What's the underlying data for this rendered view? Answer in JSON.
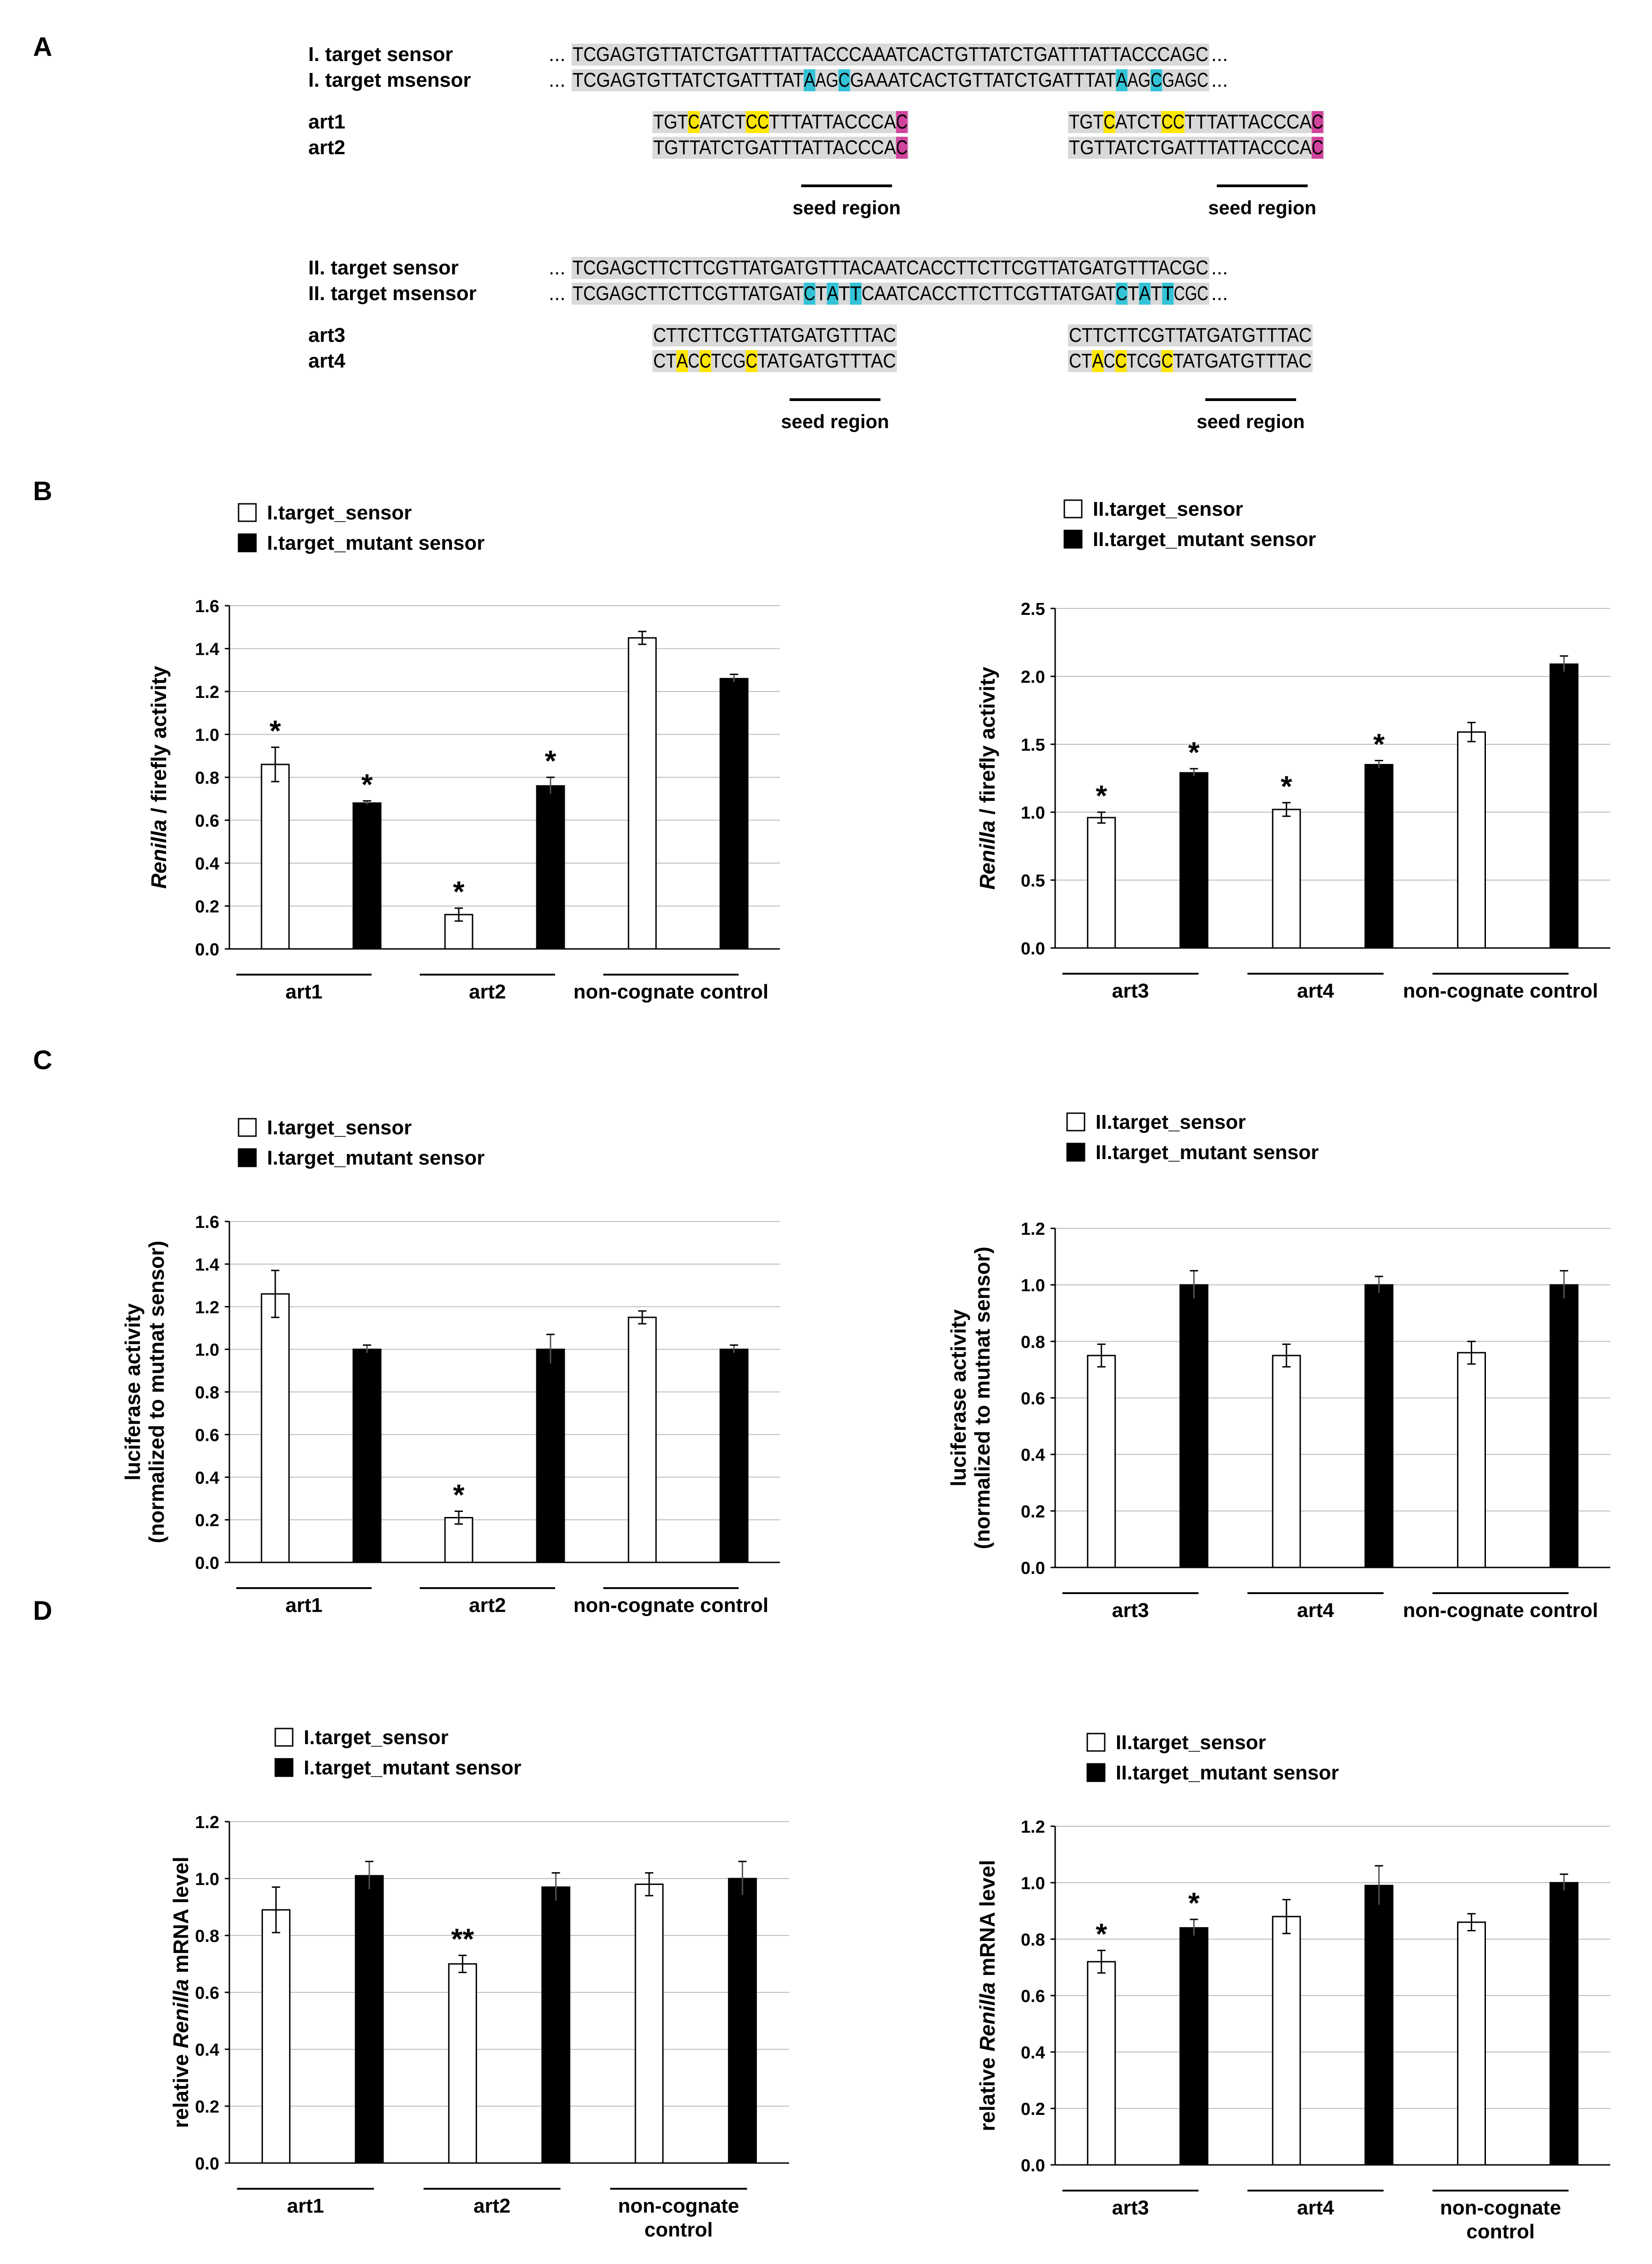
{
  "figure": {
    "panel_labels": [
      "A",
      "B",
      "C",
      "D"
    ],
    "colors": {
      "seq_bg": "#d9d9d9",
      "mut_cyan": "#33c3d7",
      "mut_yellow": "#ffe600",
      "mut_magenta": "#d0449d",
      "bar_filled": "#000000",
      "bar_open": "#ffffff"
    }
  },
  "panel_a": {
    "block1": {
      "rows": [
        {
          "label": "I. target sensor",
          "prefix": "...",
          "suffix": "...",
          "segments": [
            {
              "t": "TCGAGTGTTATCTGATTTATTACCCAAATCACTGTTATCTGATTTATTACCCAGC",
              "h": ""
            }
          ]
        },
        {
          "label": "I. target msensor",
          "prefix": "...",
          "suffix": "...",
          "segments": [
            {
              "t": "TCGAGTGTTATCTGATTTAT",
              "h": ""
            },
            {
              "t": "A",
              "h": "cyan"
            },
            {
              "t": "AG",
              "h": ""
            },
            {
              "t": "C",
              "h": "cyan"
            },
            {
              "t": "GAAATCACTGTTATCTGATTTAT",
              "h": ""
            },
            {
              "t": "A",
              "h": "cyan"
            },
            {
              "t": "AG",
              "h": ""
            },
            {
              "t": "C",
              "h": "cyan"
            },
            {
              "t": "GAGC",
              "h": ""
            }
          ]
        }
      ],
      "arts": [
        {
          "label": "art1",
          "left": [
            {
              "t": "TGT",
              "h": ""
            },
            {
              "t": "C",
              "h": "yellow"
            },
            {
              "t": "ATCT",
              "h": ""
            },
            {
              "t": "CC",
              "h": "yellow"
            },
            {
              "t": "TTTATTACCCA",
              "h": ""
            },
            {
              "t": "C",
              "h": "magenta"
            }
          ],
          "right": [
            {
              "t": "TGT",
              "h": ""
            },
            {
              "t": "C",
              "h": "yellow"
            },
            {
              "t": "ATCT",
              "h": ""
            },
            {
              "t": "CC",
              "h": "yellow"
            },
            {
              "t": "TTTATTACCCA",
              "h": ""
            },
            {
              "t": "C",
              "h": "magenta"
            }
          ]
        },
        {
          "label": "art2",
          "left": [
            {
              "t": "TGTTATCTGATTTATTACCCA",
              "h": ""
            },
            {
              "t": "C",
              "h": "magenta"
            }
          ],
          "right": [
            {
              "t": "TGTTATCTGATTTATTACCCA",
              "h": ""
            },
            {
              "t": "C",
              "h": "magenta"
            }
          ]
        }
      ],
      "seed_label": "seed region"
    },
    "block2": {
      "rows": [
        {
          "label": "II. target sensor",
          "prefix": "...",
          "suffix": "...",
          "segments": [
            {
              "t": "TCGAGCTTCTTCGTTATGATGTTTACAATCACCTTCTTCGTTATGATGTTTACGC",
              "h": ""
            }
          ]
        },
        {
          "label": "II. target msensor",
          "prefix": "...",
          "suffix": "...",
          "segments": [
            {
              "t": "TCGAGCTTCTTCGTTATGAT",
              "h": ""
            },
            {
              "t": "C",
              "h": "cyan"
            },
            {
              "t": "T",
              "h": ""
            },
            {
              "t": "A",
              "h": "cyan"
            },
            {
              "t": "T",
              "h": ""
            },
            {
              "t": "T",
              "h": "cyan"
            },
            {
              "t": "CAATCACCTTCTTCGTTATGAT",
              "h": ""
            },
            {
              "t": "C",
              "h": "cyan"
            },
            {
              "t": "T",
              "h": ""
            },
            {
              "t": "A",
              "h": "cyan"
            },
            {
              "t": "T",
              "h": ""
            },
            {
              "t": "T",
              "h": "cyan"
            },
            {
              "t": "CGC",
              "h": ""
            }
          ]
        }
      ],
      "arts": [
        {
          "label": "art3",
          "left": [
            {
              "t": "CTTCTTCGTTATGATGTTTAC",
              "h": ""
            }
          ],
          "right": [
            {
              "t": "CTTCTTCGTTATGATGTTTAC",
              "h": ""
            }
          ]
        },
        {
          "label": "art4",
          "left": [
            {
              "t": "CT",
              "h": ""
            },
            {
              "t": "A",
              "h": "yellow"
            },
            {
              "t": "C",
              "h": ""
            },
            {
              "t": "C",
              "h": "yellow"
            },
            {
              "t": "TCG",
              "h": ""
            },
            {
              "t": "C",
              "h": "yellow"
            },
            {
              "t": "TATGATGTTTAC",
              "h": ""
            }
          ],
          "right": [
            {
              "t": "CT",
              "h": ""
            },
            {
              "t": "A",
              "h": "yellow"
            },
            {
              "t": "C",
              "h": ""
            },
            {
              "t": "C",
              "h": "yellow"
            },
            {
              "t": "TCG",
              "h": ""
            },
            {
              "t": "C",
              "h": "yellow"
            },
            {
              "t": "TATGATGTTTAC",
              "h": ""
            }
          ]
        }
      ],
      "seed_label": "seed region"
    }
  },
  "chart_data": [
    {
      "id": "B-left",
      "panel": "B",
      "type": "bar",
      "ylabel_parts": [
        "Renilla",
        " / firefly activity"
      ],
      "ylim": [
        0,
        1.6
      ],
      "yticks": [
        0,
        0.2,
        0.4,
        0.6,
        0.8,
        1.0,
        1.2,
        1.4,
        1.6
      ],
      "decimals": 1,
      "legend": [
        "I.target_sensor",
        "I.target_mutant sensor"
      ],
      "groups": [
        {
          "label": [
            "art1"
          ]
        },
        {
          "label": [
            "art2"
          ]
        },
        {
          "label": [
            "non-cognate control"
          ]
        }
      ],
      "series": [
        {
          "name": "I.target_sensor",
          "fill": "open",
          "values": [
            0.86,
            0.16,
            1.45
          ],
          "errors": [
            0.08,
            0.03,
            0.03
          ],
          "marks": [
            "*",
            "*",
            ""
          ]
        },
        {
          "name": "I.target_mutant sensor",
          "fill": "filled",
          "values": [
            0.68,
            0.76,
            1.26
          ],
          "errors": [
            0.01,
            0.04,
            0.02
          ],
          "marks": [
            "*",
            "*",
            ""
          ]
        }
      ]
    },
    {
      "id": "B-right",
      "panel": "B",
      "type": "bar",
      "ylabel_parts": [
        "Renilla",
        " / firefly activity"
      ],
      "ylim": [
        0,
        2.5
      ],
      "yticks": [
        0,
        0.5,
        1.0,
        1.5,
        2.0,
        2.5
      ],
      "decimals": 1,
      "legend": [
        "II.target_sensor",
        "II.target_mutant sensor"
      ],
      "groups": [
        {
          "label": [
            "art3"
          ]
        },
        {
          "label": [
            "art4"
          ]
        },
        {
          "label": [
            "non-cognate control"
          ]
        }
      ],
      "series": [
        {
          "name": "II.target_sensor",
          "fill": "open",
          "values": [
            0.96,
            1.02,
            1.59
          ],
          "errors": [
            0.04,
            0.05,
            0.07
          ],
          "marks": [
            "*",
            "*",
            ""
          ]
        },
        {
          "name": "II.target_mutant sensor",
          "fill": "filled",
          "values": [
            1.29,
            1.35,
            2.09
          ],
          "errors": [
            0.03,
            0.03,
            0.06
          ],
          "marks": [
            "*",
            "*",
            ""
          ]
        }
      ]
    },
    {
      "id": "C-left",
      "panel": "C",
      "type": "bar",
      "ylabel_lines": [
        "luciferase activity",
        "(normalized to mutnat sensor)"
      ],
      "ylim": [
        0,
        1.6
      ],
      "yticks": [
        0,
        0.2,
        0.4,
        0.6,
        0.8,
        1.0,
        1.2,
        1.4,
        1.6
      ],
      "decimals": 1,
      "legend": [
        "I.target_sensor",
        "I.target_mutant sensor"
      ],
      "groups": [
        {
          "label": [
            "art1"
          ]
        },
        {
          "label": [
            "art2"
          ]
        },
        {
          "label": [
            "non-cognate control"
          ]
        }
      ],
      "series": [
        {
          "name": "I.target_sensor",
          "fill": "open",
          "values": [
            1.26,
            0.21,
            1.15
          ],
          "errors": [
            0.11,
            0.03,
            0.03
          ],
          "marks": [
            "",
            "*",
            ""
          ]
        },
        {
          "name": "I.target_mutant sensor",
          "fill": "filled",
          "values": [
            1.0,
            1.0,
            1.0
          ],
          "errors": [
            0.02,
            0.07,
            0.02
          ],
          "marks": [
            "",
            "",
            ""
          ]
        }
      ]
    },
    {
      "id": "C-right",
      "panel": "C",
      "type": "bar",
      "ylabel_lines": [
        "luciferase activity",
        "(normalized to mutnat sensor)"
      ],
      "ylim": [
        0,
        1.2
      ],
      "yticks": [
        0,
        0.2,
        0.4,
        0.6,
        0.8,
        1.0,
        1.2
      ],
      "decimals": 1,
      "legend": [
        "II.target_sensor",
        "II.target_mutant sensor"
      ],
      "groups": [
        {
          "label": [
            "art3"
          ]
        },
        {
          "label": [
            "art4"
          ]
        },
        {
          "label": [
            "non-cognate control"
          ]
        }
      ],
      "series": [
        {
          "name": "II.target_sensor",
          "fill": "open",
          "values": [
            0.75,
            0.75,
            0.76
          ],
          "errors": [
            0.04,
            0.04,
            0.04
          ],
          "marks": [
            "",
            "",
            ""
          ]
        },
        {
          "name": "II.target_mutant sensor",
          "fill": "filled",
          "values": [
            1.0,
            1.0,
            1.0
          ],
          "errors": [
            0.05,
            0.03,
            0.05
          ],
          "marks": [
            "",
            "",
            ""
          ]
        }
      ]
    },
    {
      "id": "D-left",
      "panel": "D",
      "type": "bar",
      "ylabel_parts": [
        "relative ",
        "Renilla",
        " mRNA level"
      ],
      "ylim": [
        0,
        1.2
      ],
      "yticks": [
        0,
        0.2,
        0.4,
        0.6,
        0.8,
        1.0,
        1.2
      ],
      "decimals": 1,
      "legend": [
        "I.target_sensor",
        "I.target_mutant sensor"
      ],
      "groups": [
        {
          "label": [
            "art1"
          ]
        },
        {
          "label": [
            "art2"
          ]
        },
        {
          "label": [
            "non-cognate",
            "control"
          ]
        }
      ],
      "series": [
        {
          "name": "I.target_sensor",
          "fill": "open",
          "values": [
            0.89,
            0.7,
            0.98
          ],
          "errors": [
            0.08,
            0.03,
            0.04
          ],
          "marks": [
            "",
            "**",
            ""
          ]
        },
        {
          "name": "I.target_mutant sensor",
          "fill": "filled",
          "values": [
            1.01,
            0.97,
            1.0
          ],
          "errors": [
            0.05,
            0.05,
            0.06
          ],
          "marks": [
            "",
            "",
            ""
          ]
        }
      ]
    },
    {
      "id": "D-right",
      "panel": "D",
      "type": "bar",
      "ylabel_parts": [
        "relative ",
        "Renilla",
        " mRNA level"
      ],
      "ylim": [
        0,
        1.2
      ],
      "yticks": [
        0,
        0.2,
        0.4,
        0.6,
        0.8,
        1.0,
        1.2
      ],
      "decimals": 1,
      "legend": [
        "II.target_sensor",
        "II.target_mutant sensor"
      ],
      "groups": [
        {
          "label": [
            "art3"
          ]
        },
        {
          "label": [
            "art4"
          ]
        },
        {
          "label": [
            "non-cognate",
            "control"
          ]
        }
      ],
      "series": [
        {
          "name": "II.target_sensor",
          "fill": "open",
          "values": [
            0.72,
            0.88,
            0.86
          ],
          "errors": [
            0.04,
            0.06,
            0.03
          ],
          "marks": [
            "*",
            "",
            ""
          ]
        },
        {
          "name": "II.target_mutant sensor",
          "fill": "filled",
          "values": [
            0.84,
            0.99,
            1.0
          ],
          "errors": [
            0.03,
            0.07,
            0.03
          ],
          "marks": [
            "*",
            "",
            ""
          ]
        }
      ]
    }
  ]
}
